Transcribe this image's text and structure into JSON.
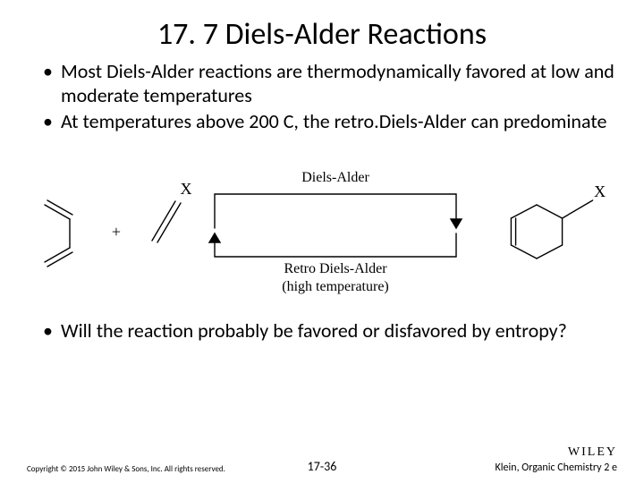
{
  "title": "17. 7 Diels-Alder Reactions",
  "bullets_top": [
    "Most Diels-Alder reactions are thermodynamically favored at low and moderate temperatures",
    "At temperatures above 200 C, the retro.Diels-Alder can predominate"
  ],
  "bullets_bottom": [
    "Will the reaction probably be favored or disfavored by entropy?"
  ],
  "diagram": {
    "type": "reaction-scheme",
    "plus_symbol": "+",
    "substituent": "X",
    "forward_label": "Diels-Alder",
    "reverse_label": "Retro Diels-Alder",
    "reverse_sublabel": "(high temperature)",
    "colors": {
      "stroke": "#000000",
      "text": "#000000",
      "background": "#ffffff"
    },
    "font_family": "Times New Roman, serif",
    "label_fontsize": 16,
    "line_width": 1.4
  },
  "footer": {
    "copyright": "Copyright © 2015 John Wiley & Sons, Inc. All rights reserved.",
    "page_number": "17-36",
    "brand": "WILEY",
    "author_line": "Klein, Organic Chemistry 2 e"
  }
}
